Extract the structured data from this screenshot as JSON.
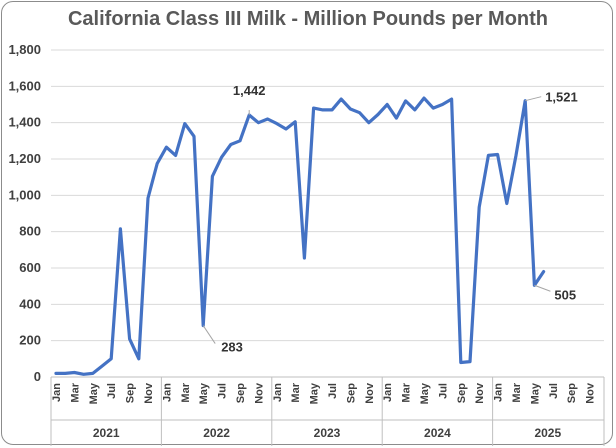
{
  "chart_data": {
    "type": "line",
    "title": "California Class III Milk - Million Pounds per Month",
    "xlabel": "",
    "ylabel": "",
    "ylim": [
      0,
      1800
    ],
    "yticks": [
      0,
      200,
      400,
      600,
      800,
      1000,
      1200,
      1400,
      1600,
      1800
    ],
    "ytick_labels": [
      "0",
      "200",
      "400",
      "600",
      "800",
      "1,000",
      "1,200",
      "1,400",
      "1,600",
      "1,800"
    ],
    "grid": true,
    "legend": "none",
    "line_color": "#4472c4",
    "years": [
      "2021",
      "2022",
      "2023",
      "2024",
      "2025"
    ],
    "month_labels": [
      "Jan",
      "Mar",
      "May",
      "Jul",
      "Sep",
      "Nov"
    ],
    "x_end": "2025-Dec",
    "series": [
      {
        "x_start": "2021-Jan",
        "values": [
          20,
          20,
          25,
          15,
          20,
          60,
          100,
          815,
          210,
          100,
          985,
          1175,
          1265,
          1220,
          1395,
          1325,
          283,
          1105,
          1210,
          1280,
          1300,
          1442,
          1400,
          1420,
          1395,
          1365,
          1405,
          655,
          1480,
          1470,
          1470,
          1530,
          1475,
          1455,
          1400,
          1445,
          1500,
          1425,
          1520,
          1470,
          1535,
          1480,
          1500,
          1530,
          80,
          85,
          935,
          1220,
          1225,
          955,
          1220,
          1521,
          505,
          580
        ]
      }
    ],
    "annotations": [
      {
        "label": "1,442",
        "index": 21
      },
      {
        "label": "283",
        "index": 16
      },
      {
        "label": "1,521",
        "index": 51
      },
      {
        "label": "505",
        "index": 52
      }
    ]
  }
}
